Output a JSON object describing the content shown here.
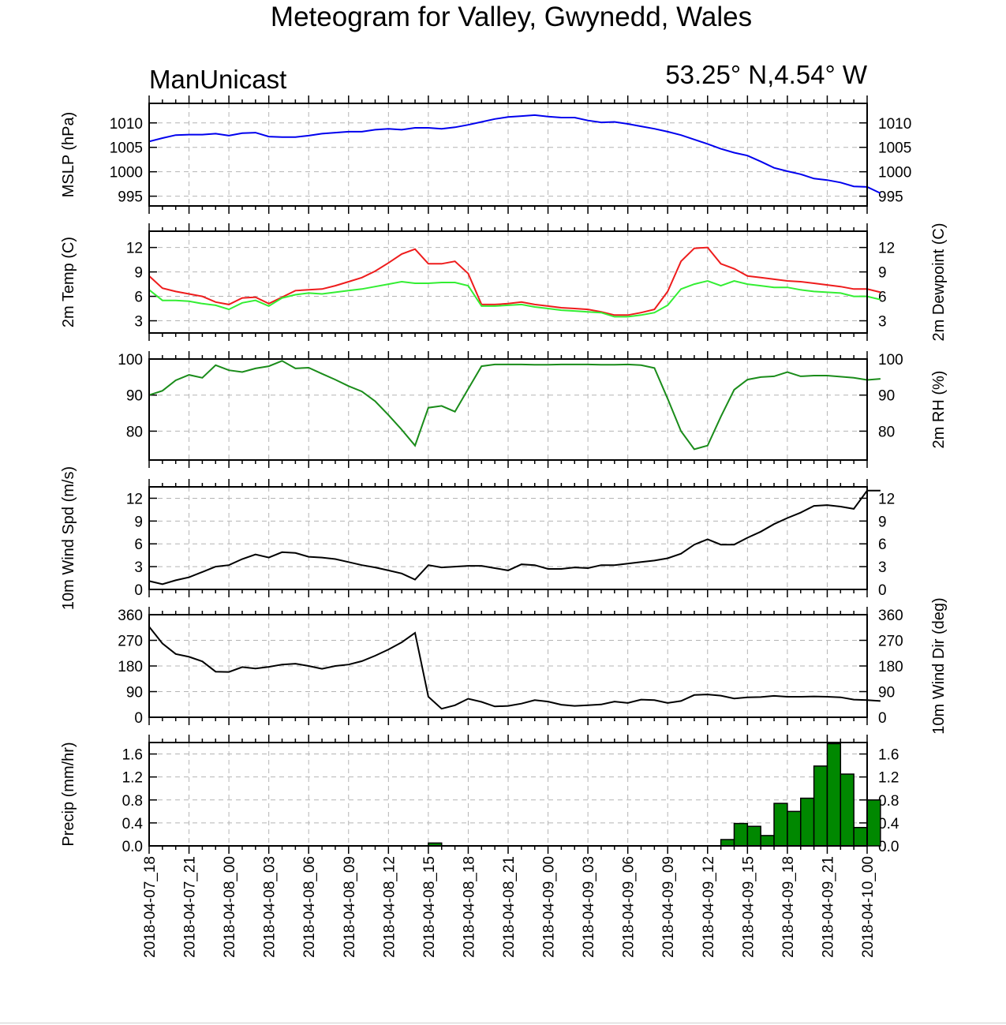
{
  "title": "Meteogram for Valley, Gwynedd, Wales",
  "model_label": "ManUnicast",
  "location_label": "53.25° N,4.54° W",
  "time_labels": [
    "2018-04-07_18",
    "2018-04-07_21",
    "2018-04-08_00",
    "2018-04-08_03",
    "2018-04-08_06",
    "2018-04-08_09",
    "2018-04-08_12",
    "2018-04-08_15",
    "2018-04-08_18",
    "2018-04-08_21",
    "2018-04-09_00",
    "2018-04-09_03",
    "2018-04-09_06",
    "2018-04-09_09",
    "2018-04-09_12",
    "2018-04-09_15",
    "2018-04-09_18",
    "2018-04-09_21",
    "2018-04-10_00"
  ],
  "colors": {
    "mslp": "#0000ee",
    "temp": "#ee1c1c",
    "dewpoint": "#33ee33",
    "rh": "#1a8c1a",
    "wind": "#000000",
    "precip_fill": "#008800",
    "grid": "#b4b4b4"
  },
  "chart_data": [
    {
      "type": "line",
      "id": "mslp",
      "ylabel_left": "MSLP (hPa)",
      "ylabel_right": "",
      "ylim": [
        993,
        1014
      ],
      "yticks": [
        995,
        1000,
        1005,
        1010
      ],
      "x_start_hours": 0,
      "x_step_hours": 1,
      "series": [
        {
          "name": "MSLP",
          "color_key": "mslp",
          "values": [
            1006.2,
            1006.9,
            1007.5,
            1007.6,
            1007.6,
            1007.8,
            1007.4,
            1007.9,
            1008.0,
            1007.2,
            1007.1,
            1007.1,
            1007.4,
            1007.8,
            1008.0,
            1008.2,
            1008.2,
            1008.6,
            1008.8,
            1008.6,
            1009.0,
            1009.0,
            1008.8,
            1009.1,
            1009.6,
            1010.2,
            1010.8,
            1011.2,
            1011.4,
            1011.6,
            1011.3,
            1011.1,
            1011.1,
            1010.5,
            1010.1,
            1010.2,
            1009.8,
            1009.3,
            1008.8,
            1008.2,
            1007.5,
            1006.6,
            1005.7,
            1004.7,
            1003.9,
            1003.3,
            1002.1,
            1000.8,
            1000.1,
            999.5,
            998.6,
            998.3,
            997.8,
            997.0,
            996.9,
            995.6
          ]
        }
      ]
    },
    {
      "type": "line",
      "id": "temp",
      "ylabel_left": "2m Temp (C)",
      "ylabel_right": "2m Dewpoint (C)",
      "ylim": [
        1.5,
        14
      ],
      "yticks": [
        3,
        6,
        9,
        12
      ],
      "x_start_hours": 0,
      "x_step_hours": 1,
      "series": [
        {
          "name": "2m Temp",
          "color_key": "temp",
          "values": [
            8.5,
            7.0,
            6.6,
            6.3,
            6.0,
            5.3,
            5.0,
            5.8,
            5.9,
            5.1,
            5.9,
            6.7,
            6.8,
            6.9,
            7.3,
            7.8,
            8.3,
            9.1,
            10.1,
            11.2,
            11.8,
            10.0,
            10.0,
            10.3,
            8.8,
            5.0,
            5.0,
            5.1,
            5.3,
            5.0,
            4.8,
            4.6,
            4.5,
            4.4,
            4.1,
            3.7,
            3.7,
            4.0,
            4.4,
            6.6,
            10.3,
            11.9,
            12.0,
            10.0,
            9.4,
            8.5,
            8.3,
            8.1,
            7.9,
            7.8,
            7.6,
            7.4,
            7.2,
            6.9,
            6.9,
            6.5
          ]
        },
        {
          "name": "2m Dewpoint",
          "color_key": "dewpoint",
          "values": [
            6.8,
            5.5,
            5.5,
            5.4,
            5.1,
            4.9,
            4.4,
            5.2,
            5.5,
            4.8,
            5.8,
            6.2,
            6.4,
            6.3,
            6.5,
            6.7,
            6.9,
            7.2,
            7.5,
            7.8,
            7.6,
            7.6,
            7.7,
            7.7,
            7.3,
            4.8,
            4.8,
            4.9,
            5.0,
            4.7,
            4.5,
            4.3,
            4.2,
            4.1,
            4.0,
            3.5,
            3.5,
            3.7,
            4.0,
            4.9,
            6.9,
            7.5,
            7.9,
            7.3,
            7.9,
            7.5,
            7.3,
            7.1,
            7.1,
            6.8,
            6.6,
            6.5,
            6.4,
            6.0,
            6.0,
            5.6
          ]
        }
      ]
    },
    {
      "type": "line",
      "id": "rh",
      "ylabel_left": "",
      "ylabel_right": "2m RH (%)",
      "ylim": [
        72,
        100
      ],
      "yticks": [
        80,
        90,
        100
      ],
      "x_start_hours": 0,
      "x_step_hours": 1,
      "series": [
        {
          "name": "2m RH",
          "color_key": "rh",
          "values": [
            90.0,
            91.2,
            94.1,
            95.6,
            94.8,
            98.3,
            96.9,
            96.4,
            97.4,
            98.0,
            99.5,
            97.4,
            97.6,
            95.9,
            94.3,
            92.5,
            91.0,
            88.3,
            84.5,
            80.4,
            76.0,
            86.5,
            87.0,
            85.4,
            91.7,
            98.0,
            98.5,
            98.5,
            98.5,
            98.4,
            98.4,
            98.5,
            98.5,
            98.5,
            98.4,
            98.4,
            98.5,
            98.3,
            97.5,
            89.0,
            80.0,
            75.0,
            76.0,
            84.0,
            91.5,
            94.3,
            95.0,
            95.2,
            96.4,
            95.2,
            95.4,
            95.4,
            95.1,
            94.8,
            94.2,
            94.5
          ]
        }
      ]
    },
    {
      "type": "line",
      "id": "wind_speed",
      "ylabel_left": "10m Wind Spd (m/s)",
      "ylabel_right": "",
      "ylim": [
        0,
        13.5
      ],
      "yticks": [
        0,
        3,
        6,
        9,
        12
      ],
      "x_start_hours": 0,
      "x_step_hours": 1,
      "series": [
        {
          "name": "10m Wind Spd",
          "color_key": "wind",
          "values": [
            1.1,
            0.7,
            1.2,
            1.6,
            2.3,
            3.0,
            3.2,
            4.0,
            4.6,
            4.2,
            4.9,
            4.8,
            4.3,
            4.2,
            4.0,
            3.6,
            3.2,
            2.9,
            2.5,
            2.1,
            1.3,
            3.2,
            2.9,
            3.0,
            3.1,
            3.1,
            2.8,
            2.5,
            3.3,
            3.2,
            2.7,
            2.7,
            2.9,
            2.8,
            3.2,
            3.2,
            3.4,
            3.6,
            3.8,
            4.1,
            4.7,
            5.9,
            6.6,
            5.9,
            5.9,
            6.8,
            7.6,
            8.6,
            9.4,
            10.1,
            11.0,
            11.1,
            10.9,
            10.6,
            13.0,
            13.0
          ]
        }
      ]
    },
    {
      "type": "line",
      "id": "wind_dir",
      "ylabel_left": "",
      "ylabel_right": "10m Wind Dir (deg)",
      "ylim": [
        0,
        360
      ],
      "yticks": [
        0,
        90,
        180,
        270,
        360
      ],
      "x_start_hours": 0,
      "x_step_hours": 1,
      "series": [
        {
          "name": "10m Wind Dir",
          "color_key": "wind",
          "values": [
            318,
            259,
            222,
            212,
            196,
            160,
            159,
            176,
            171,
            177,
            185,
            188,
            180,
            170,
            180,
            185,
            197,
            216,
            238,
            263,
            296,
            72,
            30,
            42,
            65,
            54,
            38,
            40,
            48,
            60,
            55,
            44,
            40,
            42,
            45,
            55,
            50,
            62,
            60,
            50,
            57,
            78,
            80,
            76,
            66,
            70,
            71,
            75,
            72,
            72,
            73,
            72,
            70,
            62,
            60,
            57
          ]
        }
      ]
    },
    {
      "type": "bar",
      "id": "precip",
      "ylabel_left": "Precip (mm/hr)",
      "ylabel_right": "",
      "ylim": [
        0,
        1.8
      ],
      "yticks": [
        0.0,
        0.4,
        0.8,
        1.2,
        1.6
      ],
      "tick_format": "0.0",
      "x_start_hours": 21,
      "x_step_hours": 1,
      "bar_width_hours": 1,
      "values": [
        0.05,
        0.0,
        0.0,
        0.0,
        0.0,
        0.0,
        0.0,
        0.0,
        0.0,
        0.0,
        0.0,
        0.0,
        0.0,
        0.0,
        0.0,
        0.0,
        0.0,
        0.0,
        0.0,
        0.0,
        0.0,
        0.0,
        0.11,
        0.39,
        0.34,
        0.18,
        0.74,
        0.6,
        0.83,
        1.39,
        1.78,
        1.25,
        0.32,
        0.8
      ]
    }
  ]
}
